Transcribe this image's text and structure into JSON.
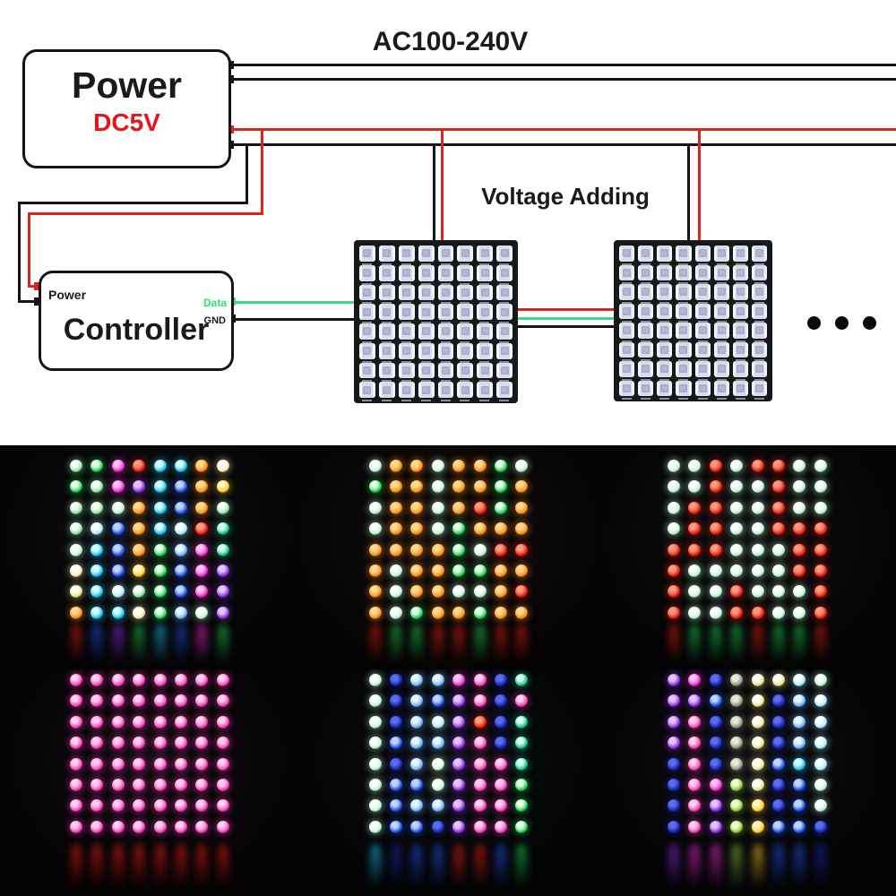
{
  "diagram": {
    "ac_label": "AC100-240V",
    "voltage_adding_label": "Voltage Adding",
    "power_box": {
      "title": "Power",
      "subtitle": "DC5V",
      "subtitle_color": "#e8131d"
    },
    "controller_box": {
      "title": "Controller",
      "power_label": "Power",
      "data_label": "Data",
      "gnd_label": "GND",
      "data_color": "#2ee06e"
    },
    "wire_colors": {
      "black": "#141414",
      "red": "#d9251d",
      "green": "#3bd98d"
    },
    "panel": {
      "rows": 8,
      "cols": 8,
      "visible_count": 2
    },
    "ellipsis_dots": 3
  },
  "photos": {
    "palette": {
      "G": [
        "#eaffea",
        "#1fd24f"
      ],
      "g": [
        "#ffffff",
        "#8ae8a0"
      ],
      "W": [
        "#ffffff",
        "#bdf5d2"
      ],
      "w": [
        "#ffffff",
        "#ffe9a8"
      ],
      "Y": [
        "#fff6c8",
        "#ffc928"
      ],
      "y": [
        "#ffffff",
        "#ece48e"
      ],
      "O": [
        "#ffd98f",
        "#ff8d17"
      ],
      "R": [
        "#ff9a7a",
        "#e81c12"
      ],
      "M": [
        "#ffc3ef",
        "#f32ad4"
      ],
      "P": [
        "#ffd0ec",
        "#ff3fb9"
      ],
      "V": [
        "#e3c6ff",
        "#8f2fe8"
      ],
      "B": [
        "#bcd6ff",
        "#2050f0"
      ],
      "N": [
        "#5a6cf0",
        "#1a27ae"
      ],
      "b": [
        "#eaf6ff",
        "#6db5ff"
      ],
      "C": [
        "#d8fbff",
        "#19c3f2"
      ],
      "c": [
        "#ffffff",
        "#a5ecff"
      ],
      "T": [
        "#d2ffef",
        "#17c18c"
      ],
      "K": [
        "#e8e8da",
        "#8e9a7a"
      ],
      "k": [
        "#f0ffd0",
        "#8fc83e"
      ]
    },
    "items": [
      {
        "name": "rainbow-mix",
        "bg": "#08080a",
        "grid": [
          "gGMRCCOw",
          "GgMVCBOY",
          "ggWOCBOg",
          "gcBOCcRT",
          "WCBOGbMT",
          "wCBYGBMV",
          "yCcgGBMV",
          "OCCwGbWV"
        ],
        "reflections": "RBVGCBMG"
      },
      {
        "name": "orange-red-green",
        "bg": "#0b0706",
        "grid": [
          "WOOWOOGW",
          "GOOWOOGO",
          "WOOWORGO",
          "WOOWGOOO",
          "OOOOGWRR",
          "OWOOGGOO",
          "OWOOWWOR",
          "OWGOOGOO"
        ],
        "reflections": "RGGRRGRR"
      },
      {
        "name": "mint-red",
        "bg": "#060808",
        "grid": [
          "WWRWRRWW",
          "WWRWWRWW",
          "WRRWWRWW",
          "WRRWWRRR",
          "RRRWWWRR",
          "RWWWWWRR",
          "RWWRWWWR",
          "RWWRRWWR"
        ],
        "reflections": "RGGGRGGR"
      },
      {
        "name": "pink",
        "bg": "#0a0408",
        "grid": [
          "PPPPPPPP",
          "PPPPPPPP",
          "PPPPPPPP",
          "PPPPPPPP",
          "PPPPPPPP",
          "PPPPPPPP",
          "PPPPPPPP",
          "PPPPPPPP"
        ],
        "reflections": "RRRRRRRR"
      },
      {
        "name": "white-blue-pink-teal",
        "bg": "#040609",
        "grid": [
          "WNbbMPNT",
          "WNbBVPNP",
          "WNbcVRNT",
          "WBbbVPNT",
          "WNbWVPPT",
          "WBBWVPPG",
          "WBbbVPPG",
          "WBBNVPPG"
        ],
        "reflections": "CNBBRRBG"
      },
      {
        "name": "purple-yellow-cyan",
        "bg": "#06060a",
        "grid": [
          "VMNKyycW",
          "VVBKyNbc",
          "VPNKyNbc",
          "VPNKyNbc",
          "NPNKyBCc",
          "NPMkyNBW",
          "NPVkYNBW",
          "NPVkYBBN"
        ],
        "reflections": "VMMkYBBN"
      }
    ]
  }
}
